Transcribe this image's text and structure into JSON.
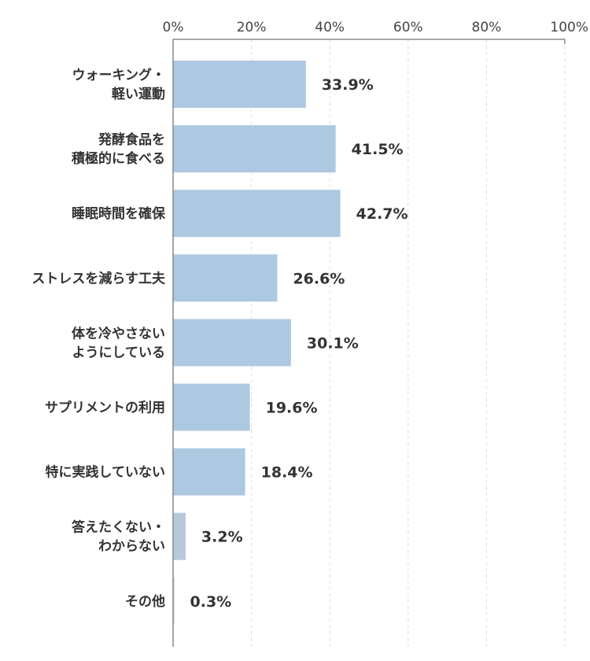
{
  "chart_data": {
    "type": "bar",
    "orientation": "horizontal",
    "title": "",
    "xlabel": "",
    "ylabel": "",
    "xlim": [
      0,
      100
    ],
    "ticks": [
      "0%",
      "20%",
      "40%",
      "60%",
      "80%",
      "100%"
    ],
    "tick_values": [
      0,
      20,
      40,
      60,
      80,
      100
    ],
    "grid": true,
    "categories": [
      [
        "ウォーキング・",
        "軽い運動"
      ],
      [
        "発酵食品を",
        "積極的に食べる"
      ],
      [
        "睡眠時間を確保"
      ],
      [
        "ストレスを減らす工夫"
      ],
      [
        "体を冷やさない",
        "ようにしている"
      ],
      [
        "サプリメントの利用"
      ],
      [
        "特に実践していない"
      ],
      [
        "答えたくない・",
        "わからない"
      ],
      [
        "その他"
      ]
    ],
    "values": [
      33.9,
      41.5,
      42.7,
      26.6,
      30.1,
      19.6,
      18.4,
      3.2,
      0.3
    ],
    "value_labels": [
      "33.9%",
      "41.5%",
      "42.7%",
      "26.6%",
      "30.1%",
      "19.6%",
      "18.4%",
      "3.2%",
      "0.3%"
    ],
    "bar_colors": [
      "#adc9e2",
      "#adc9e2",
      "#adc9e2",
      "#adc9e2",
      "#adc9e2",
      "#adc9e2",
      "#adc9e2",
      "#b9c9dc",
      "#b9c9dc"
    ]
  }
}
